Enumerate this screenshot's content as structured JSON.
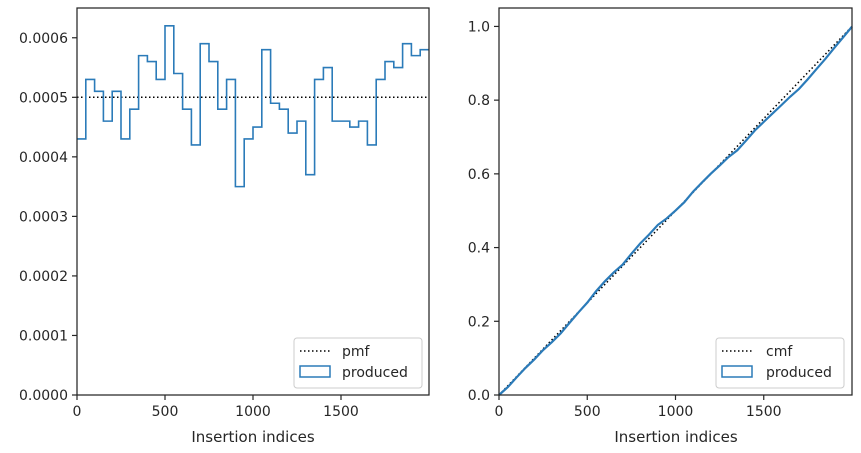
{
  "chart_data": [
    {
      "type": "step",
      "xlabel": "Insertion indices",
      "ylabel": "",
      "xlim": [
        0,
        2000
      ],
      "ylim": [
        0,
        0.00065
      ],
      "x_ticks": [
        0,
        500,
        1000,
        1500
      ],
      "y_ticks": [
        0.0,
        0.0001,
        0.0002,
        0.0003,
        0.0004,
        0.0005,
        0.0006
      ],
      "x_tick_labels": [
        "0",
        "500",
        "1000",
        "1500"
      ],
      "y_tick_labels": [
        "0.0000",
        "0.0001",
        "0.0002",
        "0.0003",
        "0.0004",
        "0.0005",
        "0.0006"
      ],
      "legend_position": "lower right",
      "series": [
        {
          "name": "pmf",
          "style": "dotted",
          "color": "#000000",
          "x": [
            0,
            2000
          ],
          "y": [
            0.0005,
            0.0005
          ]
        },
        {
          "name": "produced",
          "style": "step-histogram",
          "color": "#2b7bb9",
          "bin_width": 50,
          "bin_edges_start": 0,
          "values": [
            0.00043,
            0.00053,
            0.00051,
            0.00046,
            0.00051,
            0.00043,
            0.00048,
            0.00057,
            0.00056,
            0.00053,
            0.00062,
            0.00054,
            0.00048,
            0.00042,
            0.00059,
            0.00056,
            0.00048,
            0.00053,
            0.00035,
            0.00043,
            0.00045,
            0.00058,
            0.00049,
            0.00048,
            0.00044,
            0.00046,
            0.00037,
            0.00053,
            0.00055,
            0.00046,
            0.00046,
            0.00045,
            0.00046,
            0.00042,
            0.00053,
            0.00056,
            0.00055,
            0.00059,
            0.00057,
            0.00058
          ]
        }
      ]
    },
    {
      "type": "line",
      "xlabel": "Insertion indices",
      "ylabel": "",
      "xlim": [
        0,
        2000
      ],
      "ylim": [
        0,
        1.05
      ],
      "x_ticks": [
        0,
        500,
        1000,
        1500
      ],
      "y_ticks": [
        0.0,
        0.2,
        0.4,
        0.6,
        0.8,
        1.0
      ],
      "x_tick_labels": [
        "0",
        "500",
        "1000",
        "1500"
      ],
      "y_tick_labels": [
        "0.0",
        "0.2",
        "0.4",
        "0.6",
        "0.8",
        "1.0"
      ],
      "legend_position": "lower right",
      "series": [
        {
          "name": "cmf",
          "style": "dotted",
          "color": "#000000",
          "x": [
            0,
            2000
          ],
          "y": [
            0.0,
            1.0
          ]
        },
        {
          "name": "produced",
          "style": "cumulative-step",
          "color": "#2b7bb9",
          "derived_from": "cumulative sum of left-panel produced values × 50"
        }
      ]
    }
  ]
}
